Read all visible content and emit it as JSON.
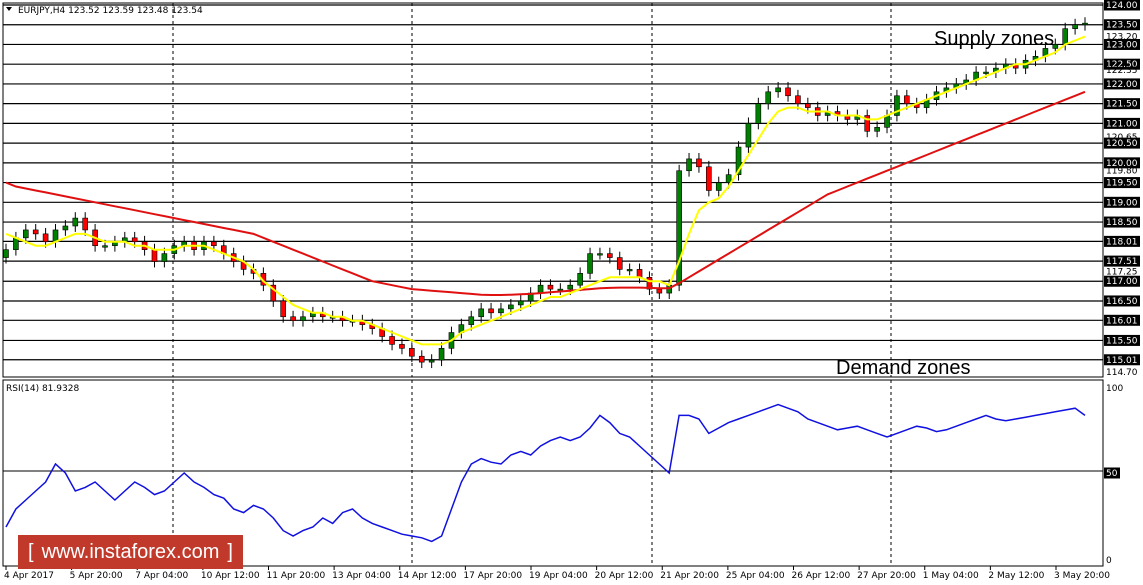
{
  "header": {
    "symbol": "EURJPY,H4",
    "ohlc": "123.52 123.59 123.48 123.54"
  },
  "rsi_header": "RSI(14) 81.9328",
  "annotations": {
    "supply": "Supply zones",
    "demand": "Demand zones"
  },
  "watermark": {
    "left": "[",
    "text": "www.instaforex.com",
    "right": "]"
  },
  "colors": {
    "bull": "#008000",
    "bear": "#ff0000",
    "ma_fast": "#ffff00",
    "ma_slow": "#e01010",
    "rsi": "#1010e0",
    "logo": "#c0392b"
  },
  "chart_data": [
    {
      "type": "candlestick",
      "symbol": "EURJPY",
      "timeframe": "H4",
      "ylim": [
        114.7,
        124.0
      ],
      "y_ticks": [
        "124.00",
        "123.50",
        "123.20",
        "123.00",
        "122.50",
        "122.35",
        "122.00",
        "121.50",
        "121.00",
        "120.65",
        "120.50",
        "120.00",
        "119.80",
        "119.50",
        "119.00",
        "118.50",
        "118.01",
        "117.51",
        "117.25",
        "117.00",
        "116.50",
        "116.01",
        "115.50",
        "115.01",
        "114.70"
      ],
      "highlighted_levels": [
        124.0,
        123.5,
        123.0,
        122.5,
        122.0,
        121.5,
        121.0,
        120.5,
        120.0,
        119.5,
        119.0,
        118.5,
        118.01,
        117.51,
        117.0,
        116.5,
        116.01,
        115.5,
        115.01
      ],
      "x_labels": [
        "4 Apr 2017",
        "5 Apr 20:00",
        "7 Apr 04:00",
        "10 Apr 12:00",
        "11 Apr 20:00",
        "13 Apr 04:00",
        "14 Apr 12:00",
        "17 Apr 20:00",
        "19 Apr 04:00",
        "20 Apr 12:00",
        "21 Apr 20:00",
        "25 Apr 04:00",
        "26 Apr 12:00",
        "27 Apr 20:00",
        "1 May 04:00",
        "2 May 12:00",
        "3 May 20:00"
      ],
      "close_series": [
        117.8,
        118.1,
        118.3,
        118.2,
        118.0,
        118.3,
        118.4,
        118.6,
        118.3,
        117.9,
        117.9,
        118.0,
        118.1,
        118.0,
        117.8,
        117.5,
        117.7,
        117.9,
        118.0,
        117.8,
        118.0,
        117.9,
        117.7,
        117.5,
        117.3,
        117.2,
        116.9,
        116.5,
        116.1,
        116.0,
        116.1,
        116.2,
        116.1,
        116.1,
        116.0,
        116.0,
        115.9,
        115.8,
        115.6,
        115.4,
        115.3,
        115.1,
        114.95,
        115.0,
        115.3,
        115.7,
        115.9,
        116.1,
        116.3,
        116.2,
        116.3,
        116.4,
        116.5,
        116.7,
        116.9,
        116.8,
        116.8,
        116.9,
        117.2,
        117.7,
        117.7,
        117.6,
        117.3,
        117.3,
        117.1,
        116.8,
        116.7,
        116.9,
        119.8,
        120.1,
        119.9,
        119.3,
        119.5,
        119.7,
        120.4,
        121.0,
        121.5,
        121.8,
        121.9,
        121.7,
        121.5,
        121.4,
        121.2,
        121.3,
        121.2,
        121.1,
        121.2,
        120.8,
        120.9,
        121.2,
        121.7,
        121.5,
        121.4,
        121.6,
        121.8,
        121.9,
        122.0,
        122.1,
        122.3,
        122.3,
        122.4,
        122.5,
        122.4,
        122.6,
        122.7,
        122.9,
        123.0,
        123.4,
        123.5,
        123.54
      ],
      "ma_fast_series": [
        118.2,
        118.1,
        118.0,
        117.9,
        117.9,
        118.0,
        118.1,
        118.2,
        118.2,
        118.1,
        118.0,
        118.0,
        118.0,
        117.9,
        117.9,
        117.8,
        117.8,
        117.8,
        117.9,
        117.9,
        117.9,
        117.8,
        117.7,
        117.6,
        117.5,
        117.3,
        117.0,
        116.8,
        116.6,
        116.4,
        116.3,
        116.2,
        116.2,
        116.1,
        116.1,
        116.0,
        116.0,
        115.9,
        115.8,
        115.7,
        115.6,
        115.5,
        115.4,
        115.4,
        115.4,
        115.5,
        115.7,
        115.8,
        115.9,
        116.0,
        116.1,
        116.2,
        116.3,
        116.4,
        116.5,
        116.6,
        116.6,
        116.7,
        116.8,
        116.9,
        117.0,
        117.1,
        117.1,
        117.1,
        117.1,
        117.0,
        117.0,
        116.9,
        117.5,
        118.2,
        118.8,
        119.0,
        119.1,
        119.4,
        119.8,
        120.2,
        120.6,
        121.0,
        121.3,
        121.4,
        121.4,
        121.3,
        121.3,
        121.3,
        121.2,
        121.2,
        121.2,
        121.1,
        121.1,
        121.2,
        121.3,
        121.4,
        121.5,
        121.6,
        121.7,
        121.8,
        121.9,
        122.0,
        122.1,
        122.2,
        122.3,
        122.4,
        122.5,
        122.5,
        122.6,
        122.7,
        122.8,
        123.0,
        123.1,
        123.2
      ],
      "ma_slow_series": [
        119.5,
        119.4,
        119.35,
        119.3,
        119.25,
        119.2,
        119.15,
        119.1,
        119.05,
        119.0,
        118.95,
        118.9,
        118.85,
        118.8,
        118.75,
        118.7,
        118.65,
        118.6,
        118.55,
        118.5,
        118.45,
        118.4,
        118.35,
        118.3,
        118.25,
        118.2,
        118.1,
        118.0,
        117.9,
        117.8,
        117.7,
        117.6,
        117.5,
        117.4,
        117.3,
        117.2,
        117.1,
        117.0,
        116.95,
        116.9,
        116.85,
        116.8,
        116.78,
        116.76,
        116.74,
        116.72,
        116.7,
        116.68,
        116.66,
        116.65,
        116.65,
        116.66,
        116.67,
        116.68,
        116.7,
        116.72,
        116.74,
        116.76,
        116.78,
        116.8,
        116.82,
        116.83,
        116.84,
        116.84,
        116.84,
        116.83,
        116.82,
        116.82,
        116.95,
        117.1,
        117.25,
        117.4,
        117.55,
        117.7,
        117.85,
        118.0,
        118.15,
        118.3,
        118.45,
        118.6,
        118.75,
        118.9,
        119.05,
        119.2,
        119.3,
        119.4,
        119.5,
        119.6,
        119.7,
        119.8,
        119.9,
        120.0,
        120.1,
        120.2,
        120.3,
        120.4,
        120.5,
        120.6,
        120.7,
        120.8,
        120.9,
        121.0,
        121.1,
        121.2,
        121.3,
        121.4,
        121.5,
        121.6,
        121.7,
        121.8
      ]
    },
    {
      "type": "line",
      "name": "RSI(14)",
      "ylim": [
        0,
        100
      ],
      "y_ticks": [
        "100",
        "50",
        "0"
      ],
      "reference_line": 50,
      "values": [
        20,
        30,
        35,
        40,
        45,
        55,
        50,
        40,
        42,
        45,
        40,
        35,
        40,
        45,
        42,
        38,
        40,
        45,
        50,
        45,
        42,
        38,
        36,
        30,
        28,
        32,
        30,
        25,
        18,
        15,
        18,
        20,
        25,
        22,
        28,
        30,
        25,
        22,
        20,
        18,
        16,
        15,
        14,
        12,
        15,
        30,
        45,
        55,
        58,
        56,
        55,
        60,
        62,
        60,
        65,
        68,
        70,
        68,
        70,
        75,
        82,
        78,
        72,
        70,
        65,
        60,
        55,
        50,
        82,
        82,
        80,
        72,
        75,
        78,
        80,
        82,
        84,
        86,
        88,
        86,
        84,
        80,
        78,
        76,
        74,
        75,
        76,
        74,
        72,
        70,
        72,
        74,
        76,
        75,
        73,
        74,
        76,
        78,
        80,
        82,
        80,
        79,
        80,
        81,
        82,
        83,
        84,
        85,
        86,
        82
      ]
    }
  ]
}
